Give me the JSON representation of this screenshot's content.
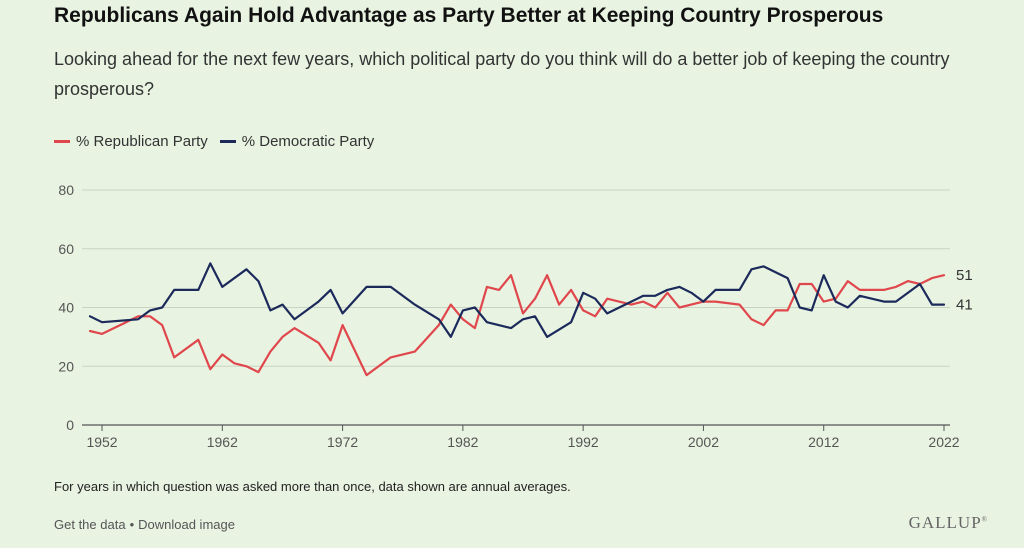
{
  "header": {
    "title": "Republicans Again Hold Advantage as Party Better at Keeping Country Prosperous",
    "subtitle": "Looking ahead for the next few years, which political party do you think will do a better job of keeping the country prosperous?"
  },
  "colors": {
    "republican": "#e0474c",
    "democratic": "#1b2a5a",
    "grid": "#c9d3c3",
    "axis": "#555555"
  },
  "chart_data": {
    "type": "line",
    "title": "Republicans Again Hold Advantage as Party Better at Keeping Country Prosperous",
    "xlabel": "",
    "ylabel": "",
    "xlim": [
      1951,
      2022
    ],
    "ylim": [
      0,
      80
    ],
    "yticks": [
      "0",
      "20",
      "40",
      "60",
      "80"
    ],
    "xticks": [
      "1952",
      "1962",
      "1972",
      "1982",
      "1992",
      "2002",
      "2012",
      "2022"
    ],
    "grid": true,
    "legend": "top-left",
    "series": [
      {
        "name": "% Republican Party",
        "color": "#e0474c",
        "end_label": "51",
        "points": [
          [
            1951,
            32
          ],
          [
            1952,
            31
          ],
          [
            1954,
            35
          ],
          [
            1955,
            37
          ],
          [
            1956,
            37
          ],
          [
            1957,
            34
          ],
          [
            1958,
            23
          ],
          [
            1960,
            29
          ],
          [
            1961,
            19
          ],
          [
            1962,
            24
          ],
          [
            1963,
            21
          ],
          [
            1964,
            20
          ],
          [
            1965,
            18
          ],
          [
            1966,
            25
          ],
          [
            1967,
            30
          ],
          [
            1968,
            33
          ],
          [
            1970,
            28
          ],
          [
            1971,
            22
          ],
          [
            1972,
            34
          ],
          [
            1974,
            17
          ],
          [
            1976,
            23
          ],
          [
            1978,
            25
          ],
          [
            1980,
            34
          ],
          [
            1981,
            41
          ],
          [
            1982,
            36
          ],
          [
            1983,
            33
          ],
          [
            1984,
            47
          ],
          [
            1985,
            46
          ],
          [
            1986,
            51
          ],
          [
            1987,
            38
          ],
          [
            1988,
            43
          ],
          [
            1989,
            51
          ],
          [
            1990,
            41
          ],
          [
            1991,
            46
          ],
          [
            1992,
            39
          ],
          [
            1993,
            37
          ],
          [
            1994,
            43
          ],
          [
            1996,
            41
          ],
          [
            1997,
            42
          ],
          [
            1998,
            40
          ],
          [
            1999,
            45
          ],
          [
            2000,
            40
          ],
          [
            2002,
            42
          ],
          [
            2003,
            42
          ],
          [
            2005,
            41
          ],
          [
            2006,
            36
          ],
          [
            2007,
            34
          ],
          [
            2008,
            39
          ],
          [
            2009,
            39
          ],
          [
            2010,
            48
          ],
          [
            2011,
            48
          ],
          [
            2012,
            42
          ],
          [
            2013,
            43
          ],
          [
            2014,
            49
          ],
          [
            2015,
            46
          ],
          [
            2017,
            46
          ],
          [
            2018,
            47
          ],
          [
            2019,
            49
          ],
          [
            2020,
            48
          ],
          [
            2021,
            50
          ],
          [
            2022,
            51
          ]
        ]
      },
      {
        "name": "% Democratic Party",
        "color": "#1b2a5a",
        "end_label": "41",
        "points": [
          [
            1951,
            37
          ],
          [
            1952,
            35
          ],
          [
            1955,
            36
          ],
          [
            1956,
            39
          ],
          [
            1957,
            40
          ],
          [
            1958,
            46
          ],
          [
            1960,
            46
          ],
          [
            1961,
            55
          ],
          [
            1962,
            47
          ],
          [
            1964,
            53
          ],
          [
            1965,
            49
          ],
          [
            1966,
            39
          ],
          [
            1967,
            41
          ],
          [
            1968,
            36
          ],
          [
            1970,
            42
          ],
          [
            1971,
            46
          ],
          [
            1972,
            38
          ],
          [
            1974,
            47
          ],
          [
            1976,
            47
          ],
          [
            1978,
            41
          ],
          [
            1980,
            36
          ],
          [
            1981,
            30
          ],
          [
            1982,
            39
          ],
          [
            1983,
            40
          ],
          [
            1984,
            35
          ],
          [
            1986,
            33
          ],
          [
            1987,
            36
          ],
          [
            1988,
            37
          ],
          [
            1989,
            30
          ],
          [
            1991,
            35
          ],
          [
            1992,
            45
          ],
          [
            1993,
            43
          ],
          [
            1994,
            38
          ],
          [
            1996,
            42
          ],
          [
            1997,
            44
          ],
          [
            1998,
            44
          ],
          [
            1999,
            46
          ],
          [
            2000,
            47
          ],
          [
            2001,
            45
          ],
          [
            2002,
            42
          ],
          [
            2003,
            46
          ],
          [
            2005,
            46
          ],
          [
            2006,
            53
          ],
          [
            2007,
            54
          ],
          [
            2009,
            50
          ],
          [
            2010,
            40
          ],
          [
            2011,
            39
          ],
          [
            2012,
            51
          ],
          [
            2013,
            42
          ],
          [
            2014,
            40
          ],
          [
            2015,
            44
          ],
          [
            2017,
            42
          ],
          [
            2018,
            42
          ],
          [
            2020,
            48
          ],
          [
            2021,
            41
          ],
          [
            2022,
            41
          ]
        ]
      }
    ],
    "note": "For years in which question was asked more than once, data shown are annual averages."
  },
  "footer": {
    "get_data": "Get the data",
    "separator": "•",
    "download": "Download image",
    "logo": "GALLUP",
    "logo_mark": "®"
  }
}
